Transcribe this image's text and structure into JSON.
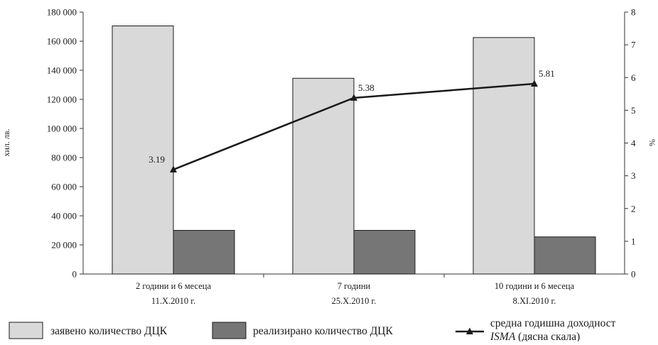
{
  "chart_data": {
    "type": "bar",
    "categories": [
      [
        "2 години и 6 месеца",
        "11.X.2010 г."
      ],
      [
        "7 години",
        "25.X.2010 г."
      ],
      [
        "10 години и 6 месеца",
        "8.XI.2010 г."
      ]
    ],
    "series": [
      {
        "name": "заявено количество ДЦК",
        "kind": "bar",
        "axis": "left",
        "color": "#d9d9d9",
        "values": [
          170500,
          134500,
          162500
        ]
      },
      {
        "name": "реализирано количество ДЦК",
        "kind": "bar",
        "axis": "left",
        "color": "#767676",
        "values": [
          30000,
          30000,
          25500
        ]
      },
      {
        "name": "средна годишна доходност",
        "name_line2": "ISMA",
        "name_line2_suffix": " (дясна скала)",
        "kind": "line",
        "axis": "right",
        "color": "#1a1a1a",
        "marker": "triangle",
        "values": [
          3.19,
          5.38,
          5.81
        ],
        "data_labels": [
          "3.19",
          "5.38",
          "5.81"
        ]
      }
    ],
    "ylabel": "хил. лв.",
    "ylabel_right": "%",
    "ylim": [
      0,
      180000
    ],
    "yticks": [
      "0",
      "20 000",
      "40 000",
      "60 000",
      "80 000",
      "100 000",
      "120 000",
      "140 000",
      "160 000",
      "180 000"
    ],
    "ylim_right": [
      0,
      8
    ],
    "yticks_right": [
      "0",
      "1",
      "2",
      "3",
      "4",
      "5",
      "6",
      "7",
      "8"
    ],
    "grid": false,
    "legend_position": "bottom"
  }
}
